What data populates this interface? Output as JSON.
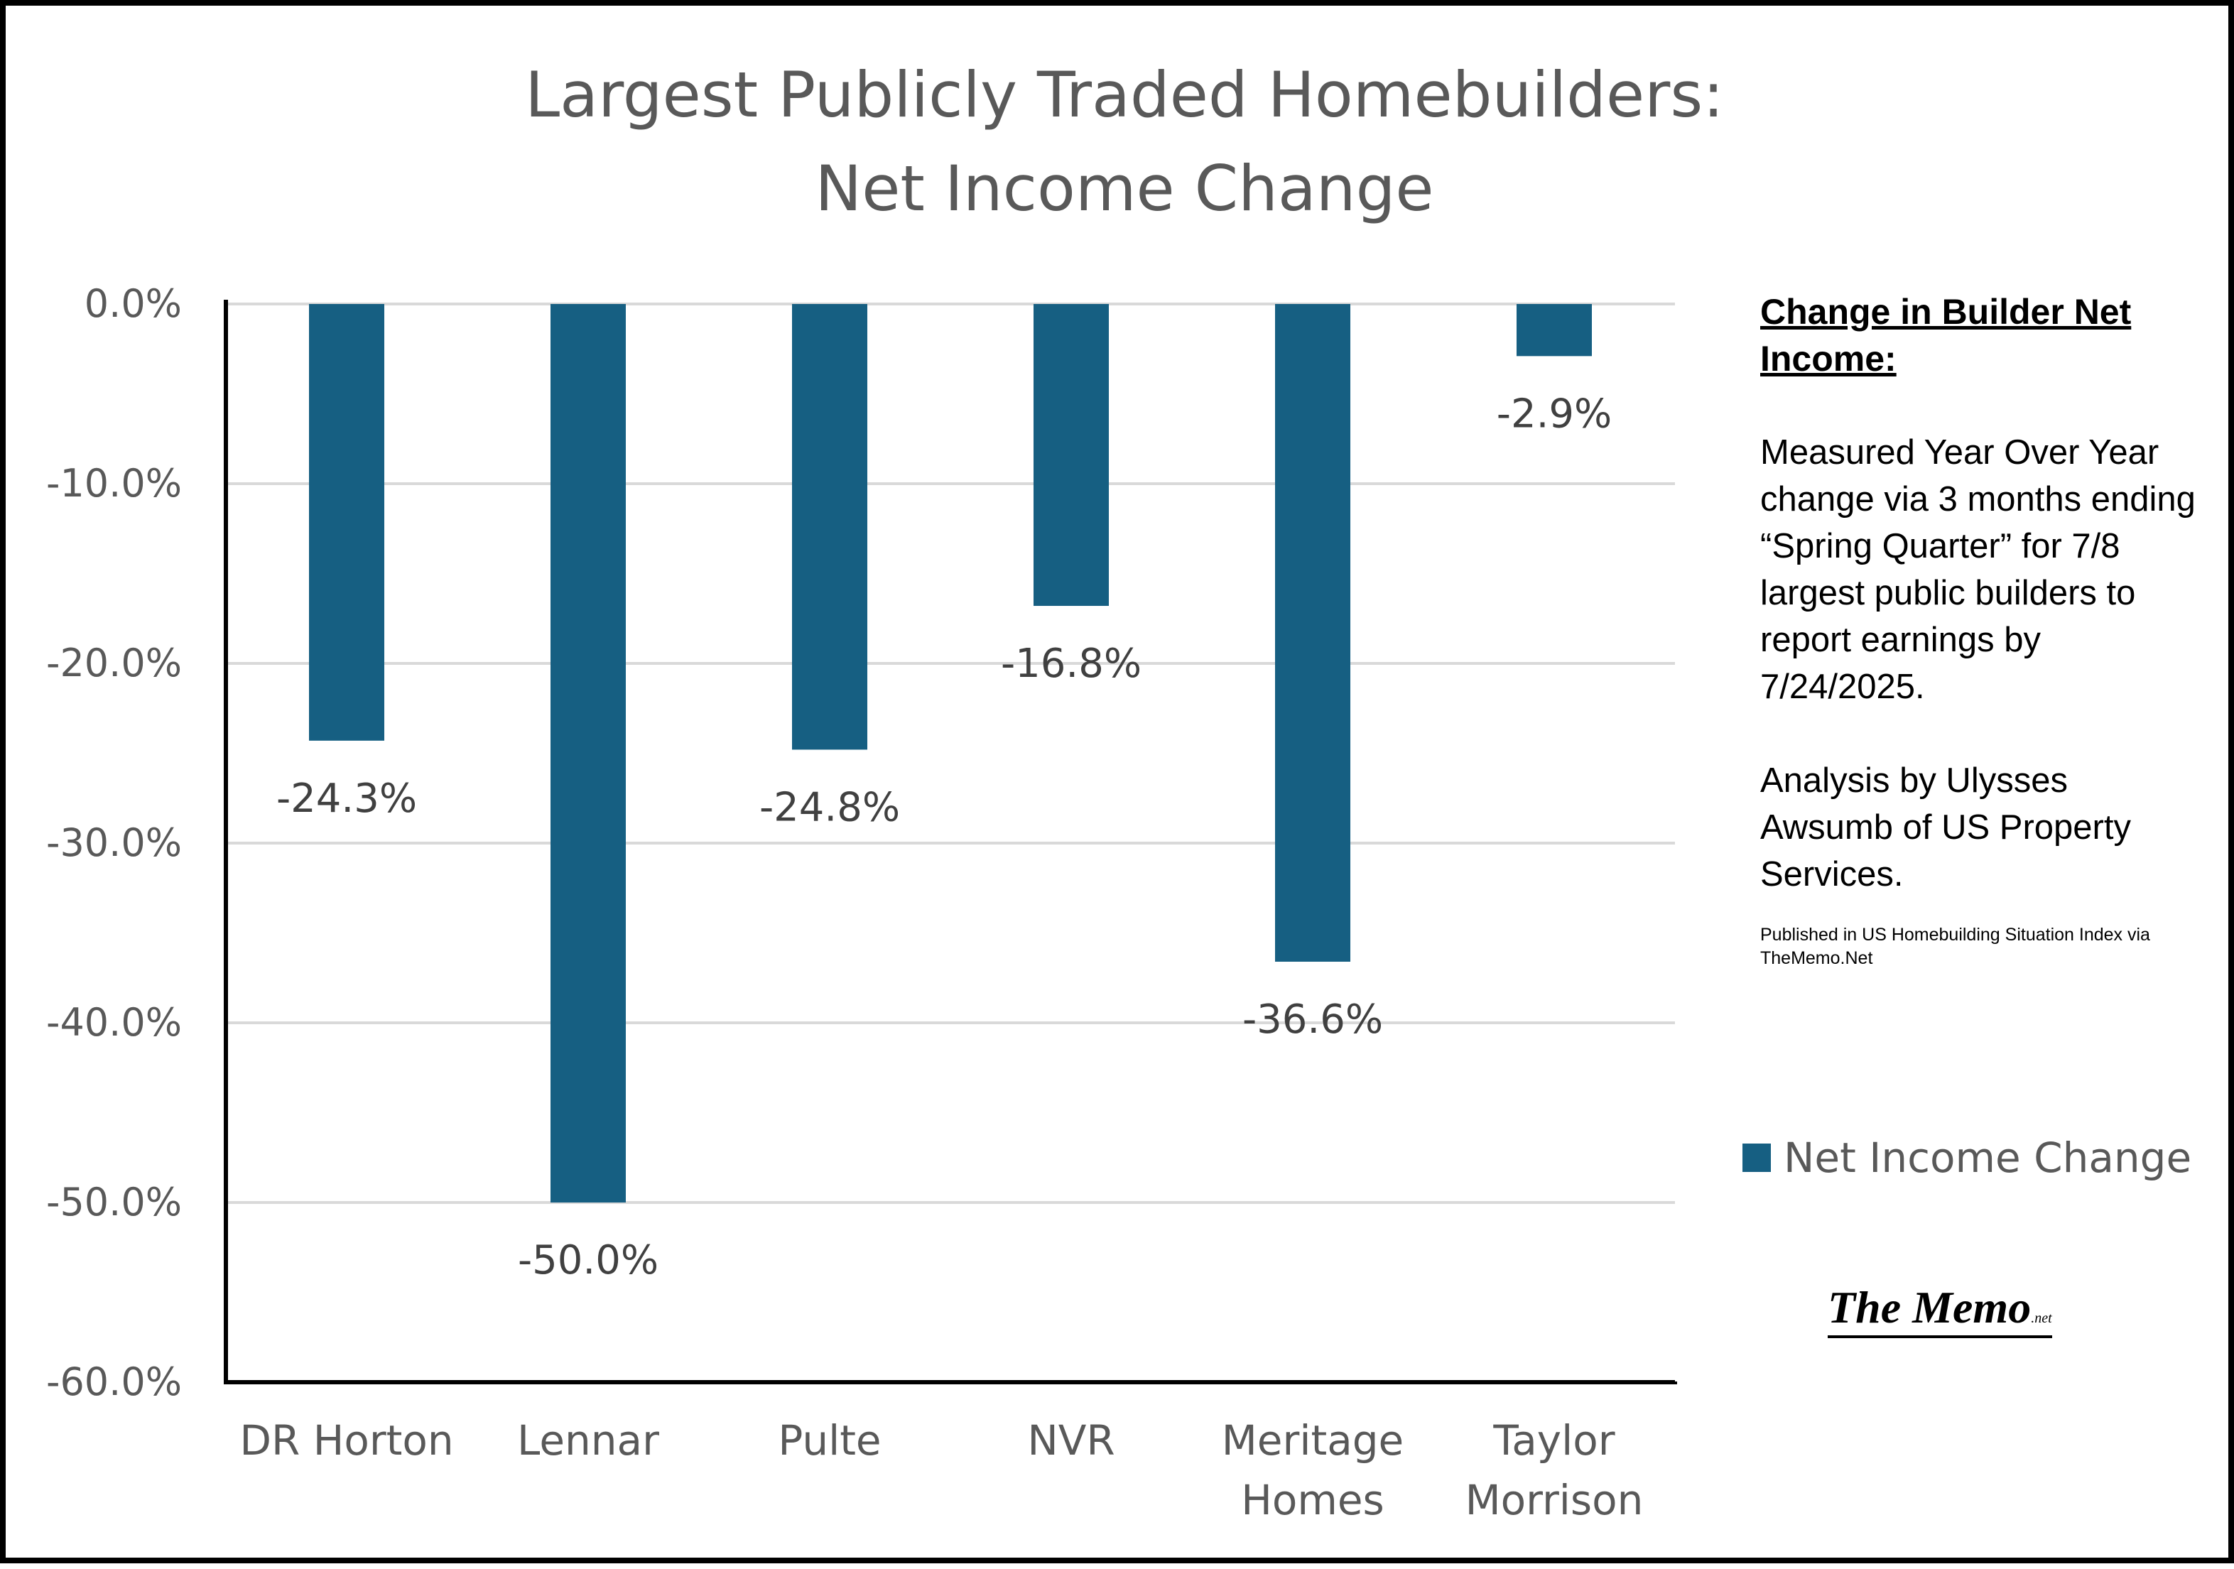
{
  "chart_data": {
    "type": "bar",
    "title": "Largest Publicly Traded Homebuilders:\nNet Income Change",
    "xlabel": "",
    "ylabel": "",
    "categories": [
      "DR Horton",
      "Lennar",
      "Pulte",
      "NVR",
      "Meritage Homes",
      "Taylor Morrison"
    ],
    "category_lines": [
      [
        "DR Horton"
      ],
      [
        "Lennar"
      ],
      [
        "Pulte"
      ],
      [
        "NVR"
      ],
      [
        "Meritage",
        "Homes"
      ],
      [
        "Taylor",
        "Morrison"
      ]
    ],
    "series": [
      {
        "name": "Net Income Change",
        "values": [
          -24.3,
          -50.0,
          -24.8,
          -16.8,
          -36.6,
          -2.9
        ],
        "color": "#165F82"
      }
    ],
    "data_labels": [
      "-24.3%",
      "-50.0%",
      "-24.8%",
      "-16.8%",
      "-36.6%",
      "-2.9%"
    ],
    "ylim": [
      -60,
      0
    ],
    "yticks": [
      0,
      -10,
      -20,
      -30,
      -40,
      -50,
      -60
    ],
    "ytick_labels": [
      "0.0%",
      "-10.0%",
      "-20.0%",
      "-30.0%",
      "-40.0%",
      "-50.0%",
      "-60.0%"
    ],
    "grid": true,
    "legend_position": "right",
    "legend_label": "Net Income Change"
  },
  "side_panel": {
    "heading": "Change in Builder Net Income:",
    "description": "Measured Year Over Year change via 3 months ending “Spring Quarter” for 7/8 largest public builders to report earnings by 7/24/2025.",
    "analysis": "Analysis by Ulysses Awsumb of US Property Services.",
    "footnote": "Published in US Homebuilding Situation Index via TheMemo.Net"
  },
  "brand": {
    "name": "The Memo",
    "suffix": ".net"
  },
  "colors": {
    "bar": "#165F82",
    "gridline": "#D9D9D9",
    "axis": "#000000",
    "text": "#595959"
  }
}
